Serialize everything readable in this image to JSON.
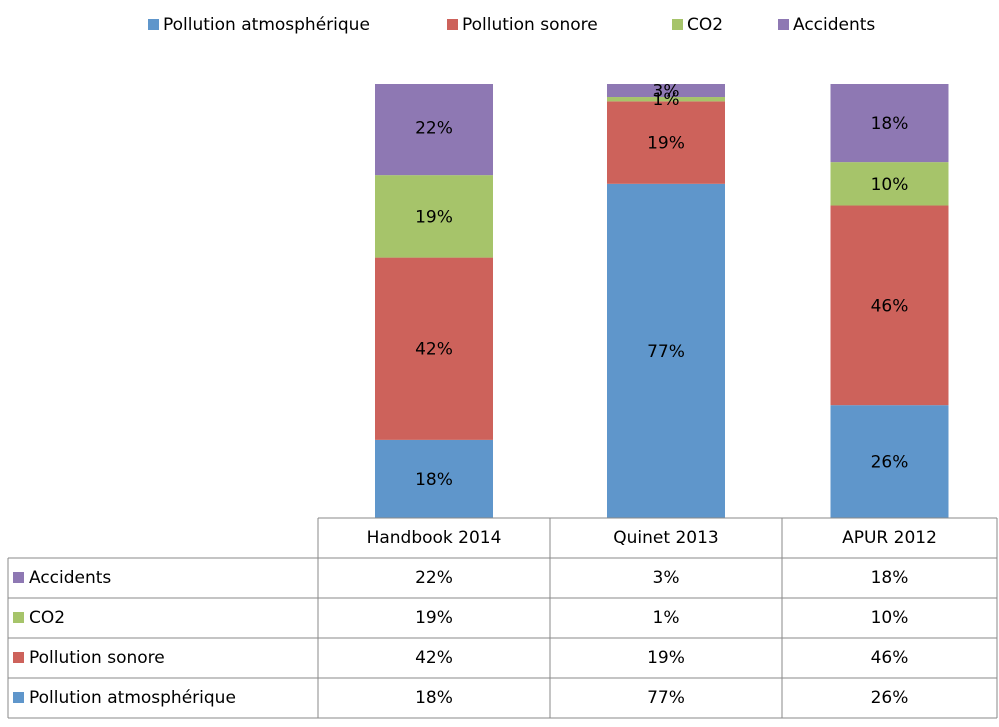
{
  "chart_data": {
    "type": "bar",
    "stacked": true,
    "categories": [
      "Handbook 2014",
      "Quinet 2013",
      "APUR 2012"
    ],
    "ylim": [
      0,
      100
    ],
    "series": [
      {
        "name": "Pollution atmosphérique",
        "color": "#5f96cb",
        "values": [
          18,
          77,
          26
        ],
        "value_labels": [
          "18%",
          "77%",
          "26%"
        ]
      },
      {
        "name": "Pollution sonore",
        "color": "#cd625b",
        "values": [
          42,
          19,
          46
        ],
        "value_labels": [
          "42%",
          "19%",
          "46%"
        ]
      },
      {
        "name": "CO2",
        "color": "#a6c46a",
        "values": [
          19,
          1,
          10
        ],
        "value_labels": [
          "19%",
          "1%",
          "10%"
        ]
      },
      {
        "name": "Accidents",
        "color": "#8e78b3",
        "values": [
          22,
          3,
          18
        ],
        "value_labels": [
          "22%",
          "3%",
          "18%"
        ]
      }
    ]
  }
}
